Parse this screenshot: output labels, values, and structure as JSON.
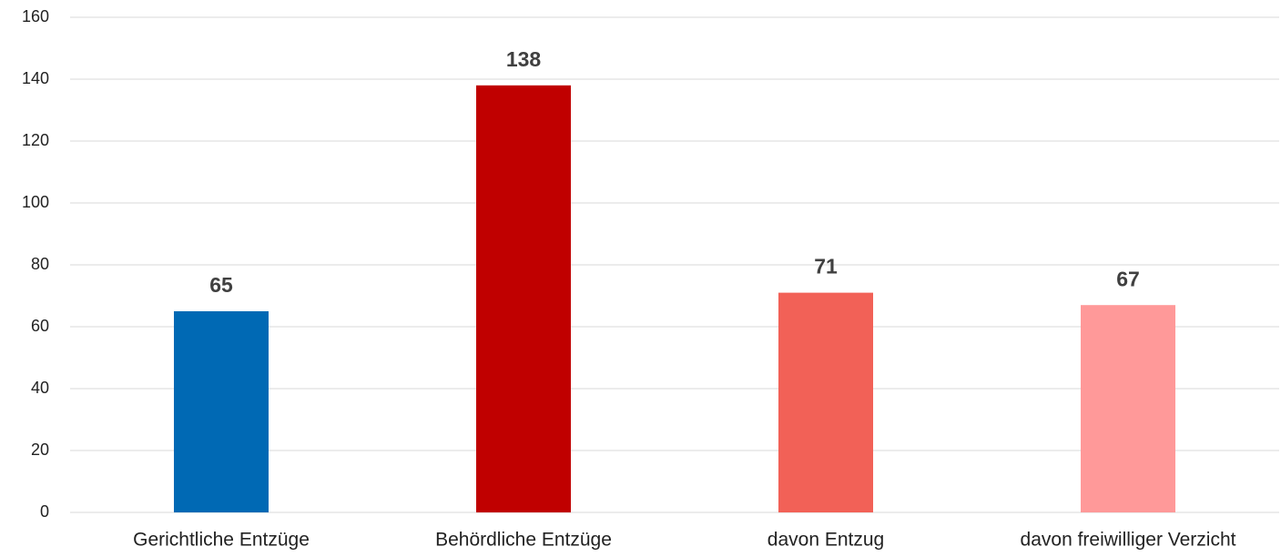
{
  "chart_data": {
    "type": "bar",
    "categories": [
      "Gerichtliche Entzüge",
      "Behördliche Entzüge",
      "davon Entzug",
      "davon freiwilliger Verzicht"
    ],
    "values": [
      65,
      138,
      71,
      67
    ],
    "colors": [
      "#0069b4",
      "#c00000",
      "#f26157",
      "#ff9999"
    ],
    "ylim": [
      0,
      160
    ],
    "yticks": [
      0,
      20,
      40,
      60,
      80,
      100,
      120,
      140,
      160
    ],
    "grid": true
  }
}
